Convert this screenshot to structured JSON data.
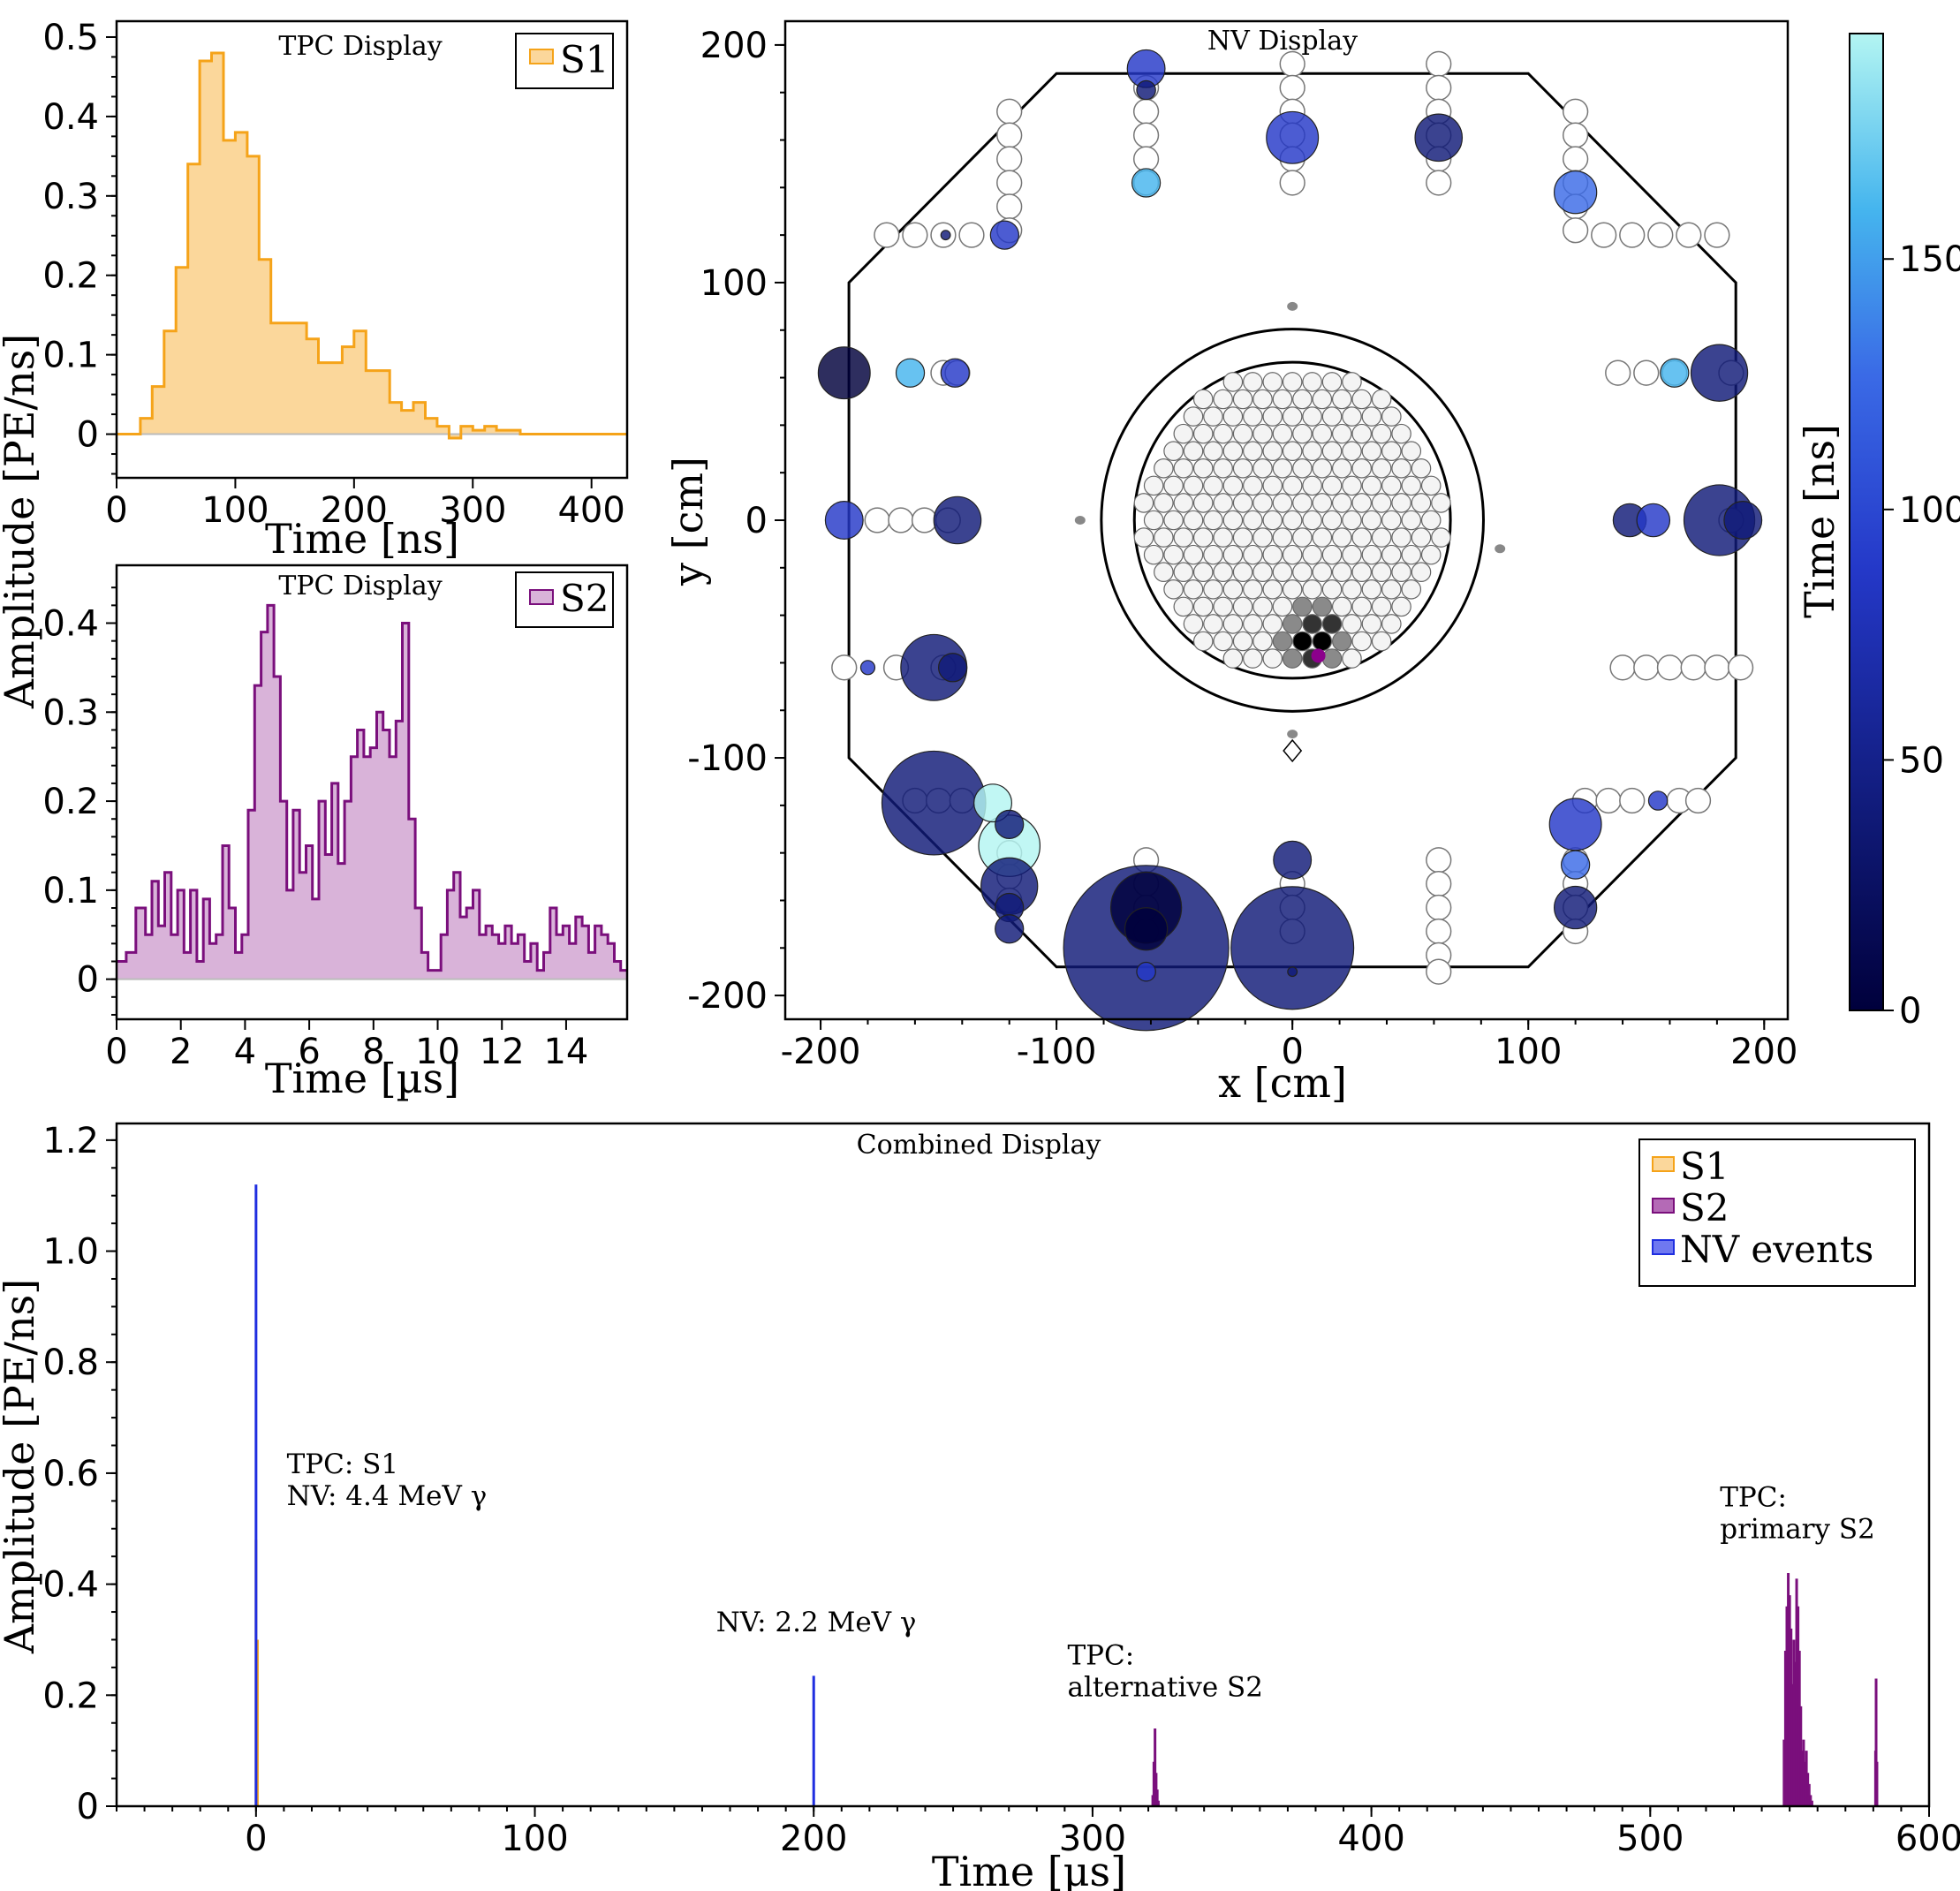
{
  "colors": {
    "s1": "#f5a319",
    "s1_fill": "#fbd79b",
    "s2": "#7a0f7c",
    "s2_fill": "#d9b3d9",
    "nv": "#1f2ee0",
    "cmap": [
      "#00003c",
      "#101a78",
      "#2438c8",
      "#3a6ae6",
      "#45b5ee",
      "#b3f5f2"
    ]
  },
  "shared_ylabel": "Amplitude [PE/ns]",
  "chart_data": [
    {
      "id": "s1",
      "type": "line",
      "title": "TPC Display",
      "xlabel": "Time [ns]",
      "ylabel": "Amplitude [PE/ns]",
      "xlim": [
        0,
        430
      ],
      "ylim": [
        -0.055,
        0.52
      ],
      "xticks": [
        0,
        100,
        200,
        300,
        400
      ],
      "yticks": [
        0,
        0.1,
        0.2,
        0.3,
        0.4,
        0.5
      ],
      "yticklabels": [
        "0",
        "0.1",
        "0.2",
        "0.3",
        "0.4",
        "0.5"
      ],
      "legend": [
        "S1"
      ],
      "series": [
        {
          "name": "S1",
          "x": [
            0,
            10,
            20,
            30,
            40,
            50,
            60,
            70,
            80,
            90,
            100,
            110,
            120,
            130,
            140,
            150,
            160,
            170,
            180,
            190,
            200,
            210,
            220,
            230,
            240,
            250,
            260,
            270,
            280,
            290,
            300,
            310,
            320,
            330,
            340,
            350,
            360,
            370,
            380,
            390,
            400,
            410,
            420,
            430
          ],
          "y": [
            0,
            0,
            0.02,
            0.06,
            0.13,
            0.21,
            0.34,
            0.47,
            0.48,
            0.37,
            0.38,
            0.35,
            0.22,
            0.14,
            0.14,
            0.14,
            0.12,
            0.09,
            0.09,
            0.11,
            0.13,
            0.08,
            0.08,
            0.04,
            0.03,
            0.04,
            0.02,
            0.01,
            -0.005,
            0.01,
            0.005,
            0.01,
            0.005,
            0.005,
            0,
            0,
            0,
            0,
            0,
            0,
            0,
            0,
            0,
            0
          ]
        }
      ]
    },
    {
      "id": "s2",
      "type": "line",
      "title": "TPC Display",
      "xlabel": "Time [µs]",
      "ylabel": "Amplitude [PE/ns]",
      "xlim": [
        0,
        15.9
      ],
      "ylim": [
        -0.045,
        0.465
      ],
      "xticks": [
        0,
        2,
        4,
        6,
        8,
        10,
        12,
        14
      ],
      "yticks": [
        0,
        0.1,
        0.2,
        0.3,
        0.4
      ],
      "yticklabels": [
        "0",
        "0.1",
        "0.2",
        "0.3",
        "0.4"
      ],
      "legend": [
        "S2"
      ],
      "series": [
        {
          "name": "S2",
          "x": [
            0,
            0.3,
            0.6,
            0.9,
            1.1,
            1.3,
            1.5,
            1.7,
            1.9,
            2.1,
            2.3,
            2.5,
            2.7,
            2.9,
            3.1,
            3.3,
            3.5,
            3.7,
            3.9,
            4.1,
            4.3,
            4.5,
            4.7,
            4.9,
            5.1,
            5.3,
            5.5,
            5.7,
            5.9,
            6.1,
            6.3,
            6.5,
            6.7,
            6.9,
            7.1,
            7.3,
            7.5,
            7.7,
            7.9,
            8.1,
            8.3,
            8.5,
            8.7,
            8.9,
            9.1,
            9.3,
            9.5,
            9.7,
            9.9,
            10.1,
            10.3,
            10.5,
            10.7,
            10.9,
            11.1,
            11.3,
            11.5,
            11.7,
            11.9,
            12.1,
            12.3,
            12.5,
            12.7,
            12.9,
            13.1,
            13.3,
            13.5,
            13.7,
            13.9,
            14.1,
            14.3,
            14.5,
            14.7,
            14.9,
            15.1,
            15.3,
            15.5,
            15.7,
            15.9
          ],
          "y": [
            0.02,
            0.03,
            0.08,
            0.05,
            0.11,
            0.06,
            0.12,
            0.05,
            0.1,
            0.03,
            0.1,
            0.02,
            0.09,
            0.04,
            0.05,
            0.15,
            0.08,
            0.03,
            0.05,
            0.19,
            0.33,
            0.39,
            0.42,
            0.34,
            0.2,
            0.1,
            0.19,
            0.12,
            0.15,
            0.09,
            0.2,
            0.14,
            0.22,
            0.13,
            0.2,
            0.25,
            0.28,
            0.25,
            0.26,
            0.3,
            0.28,
            0.25,
            0.29,
            0.4,
            0.18,
            0.08,
            0.03,
            0.01,
            0.01,
            0.05,
            0.1,
            0.12,
            0.07,
            0.08,
            0.1,
            0.05,
            0.06,
            0.05,
            0.04,
            0.06,
            0.04,
            0.05,
            0.02,
            0.04,
            0.01,
            0.03,
            0.08,
            0.05,
            0.06,
            0.04,
            0.07,
            0.06,
            0.03,
            0.06,
            0.05,
            0.04,
            0.02,
            0.01,
            0.01
          ]
        }
      ]
    },
    {
      "id": "nv",
      "type": "scatter",
      "title": "NV Display",
      "xlabel": "x [cm]",
      "ylabel": "y [cm]",
      "xlim": [
        -215,
        210
      ],
      "ylim": [
        -210,
        210
      ],
      "xticks": [
        -200,
        -100,
        0,
        100,
        200
      ],
      "yticks": [
        -200,
        -100,
        0,
        100,
        200
      ],
      "xticklabels": [
        "-200",
        "-100",
        "0",
        "100",
        "200"
      ],
      "yticklabels": [
        "-200",
        "-100",
        "0",
        "100",
        "200"
      ],
      "colorbar": {
        "label": "Time [ns]",
        "range": [
          0,
          195
        ],
        "ticks": [
          0,
          50,
          100,
          150
        ]
      },
      "outline": [
        [
          -100,
          188
        ],
        [
          100,
          188
        ],
        [
          188,
          100
        ],
        [
          188,
          -100
        ],
        [
          100,
          -188
        ],
        [
          -100,
          -188
        ],
        [
          -188,
          -100
        ],
        [
          -188,
          100
        ]
      ],
      "cryostat_radius": 81,
      "tpc_radius": 67,
      "pmt_idle": [
        [
          -120,
          172
        ],
        [
          -120,
          162
        ],
        [
          -120,
          152
        ],
        [
          -120,
          142
        ],
        [
          -120,
          132
        ],
        [
          -120,
          122
        ],
        [
          -172,
          120
        ],
        [
          -160,
          120
        ],
        [
          -148,
          120
        ],
        [
          -136,
          120
        ],
        [
          -62,
          182
        ],
        [
          -62,
          172
        ],
        [
          -62,
          162
        ],
        [
          -62,
          152
        ],
        [
          -62,
          142
        ],
        [
          0,
          192
        ],
        [
          0,
          182
        ],
        [
          0,
          172
        ],
        [
          0,
          162
        ],
        [
          0,
          152
        ],
        [
          0,
          142
        ],
        [
          62,
          192
        ],
        [
          62,
          182
        ],
        [
          62,
          172
        ],
        [
          62,
          162
        ],
        [
          62,
          152
        ],
        [
          62,
          142
        ],
        [
          120,
          172
        ],
        [
          120,
          162
        ],
        [
          120,
          152
        ],
        [
          120,
          142
        ],
        [
          120,
          132
        ],
        [
          120,
          122
        ],
        [
          132,
          120
        ],
        [
          144,
          120
        ],
        [
          156,
          120
        ],
        [
          168,
          120
        ],
        [
          180,
          120
        ],
        [
          -148,
          62
        ],
        [
          -142,
          62
        ],
        [
          138,
          62
        ],
        [
          150,
          62
        ],
        [
          162,
          62
        ],
        [
          186,
          62
        ],
        [
          -176,
          0
        ],
        [
          -166,
          0
        ],
        [
          -156,
          0
        ],
        [
          -146,
          0
        ],
        [
          186,
          0
        ],
        [
          -190,
          -62
        ],
        [
          -168,
          -62
        ],
        [
          -148,
          -62
        ],
        [
          140,
          -62
        ],
        [
          150,
          -62
        ],
        [
          160,
          -62
        ],
        [
          170,
          -62
        ],
        [
          180,
          -62
        ],
        [
          190,
          -62
        ],
        [
          -160,
          -118
        ],
        [
          -150,
          -118
        ],
        [
          -140,
          -118
        ],
        [
          124,
          -118
        ],
        [
          134,
          -118
        ],
        [
          144,
          -118
        ],
        [
          164,
          -118
        ],
        [
          172,
          -118
        ],
        [
          -62,
          -143
        ],
        [
          -62,
          -153
        ],
        [
          -62,
          -163
        ],
        [
          -62,
          -173
        ],
        [
          0,
          -153
        ],
        [
          0,
          -163
        ],
        [
          0,
          -173
        ],
        [
          62,
          -143
        ],
        [
          62,
          -153
        ],
        [
          62,
          -163
        ],
        [
          62,
          -173
        ],
        [
          62,
          -183
        ],
        [
          62,
          -190
        ],
        [
          120,
          -143
        ],
        [
          120,
          -153
        ],
        [
          120,
          -163
        ],
        [
          120,
          -173
        ],
        [
          -120,
          -140
        ],
        [
          -120,
          -150
        ],
        [
          -120,
          -160
        ]
      ],
      "hits": [
        {
          "x": -62,
          "y": 190,
          "r": 8,
          "t": 60
        },
        {
          "x": -62,
          "y": 181,
          "r": 4,
          "t": 20
        },
        {
          "x": 0,
          "y": 161,
          "r": 11,
          "t": 90
        },
        {
          "x": 62,
          "y": 161,
          "r": 10,
          "t": 25
        },
        {
          "x": -62,
          "y": 142,
          "r": 6,
          "t": 150
        },
        {
          "x": 120,
          "y": 138,
          "r": 9,
          "t": 130
        },
        {
          "x": -122,
          "y": 120,
          "r": 6,
          "t": 60
        },
        {
          "x": -147,
          "y": 120,
          "r": 2,
          "t": 40
        },
        {
          "x": -190,
          "y": 62,
          "r": 11,
          "t": 15
        },
        {
          "x": -162,
          "y": 62,
          "r": 6,
          "t": 170
        },
        {
          "x": -143,
          "y": 62,
          "r": 6,
          "t": 70
        },
        {
          "x": 162,
          "y": 62,
          "r": 6,
          "t": 160
        },
        {
          "x": 181,
          "y": 62,
          "r": 12,
          "t": 45
        },
        {
          "x": -190,
          "y": 0,
          "r": 8,
          "t": 70
        },
        {
          "x": -142,
          "y": 0,
          "r": 10,
          "t": 20
        },
        {
          "x": 143,
          "y": 0,
          "r": 7,
          "t": 30
        },
        {
          "x": 153,
          "y": 0,
          "r": 7,
          "t": 70
        },
        {
          "x": 181,
          "y": 0,
          "r": 15,
          "t": 35
        },
        {
          "x": 191,
          "y": 0,
          "r": 8,
          "t": 30
        },
        {
          "x": -152,
          "y": -62,
          "r": 14,
          "t": 40
        },
        {
          "x": -144,
          "y": -62,
          "r": 6,
          "t": 20
        },
        {
          "x": -180,
          "y": -62,
          "r": 3,
          "t": 60
        },
        {
          "x": -152,
          "y": -119,
          "r": 22,
          "t": 20
        },
        {
          "x": -127,
          "y": -119,
          "r": 8,
          "t": 195
        },
        {
          "x": -120,
          "y": -137,
          "r": 13,
          "t": 190
        },
        {
          "x": -120,
          "y": -128,
          "r": 6,
          "t": 30
        },
        {
          "x": -120,
          "y": -154,
          "r": 12,
          "t": 30
        },
        {
          "x": -120,
          "y": -163,
          "r": 6,
          "t": 25
        },
        {
          "x": -120,
          "y": -172,
          "r": 6,
          "t": 40
        },
        {
          "x": -62,
          "y": -163,
          "r": 15,
          "t": 15
        },
        {
          "x": -62,
          "y": -172,
          "r": 9,
          "t": 10
        },
        {
          "x": -62,
          "y": -180,
          "r": 35,
          "t": 20
        },
        {
          "x": -62,
          "y": -190,
          "r": 4,
          "t": 60
        },
        {
          "x": 0,
          "y": -143,
          "r": 8,
          "t": 55
        },
        {
          "x": 0,
          "y": -180,
          "r": 26,
          "t": 30
        },
        {
          "x": 0,
          "y": -190,
          "r": 2,
          "t": 40
        },
        {
          "x": 120,
          "y": -128,
          "r": 11,
          "t": 70
        },
        {
          "x": 120,
          "y": -145,
          "r": 6,
          "t": 100
        },
        {
          "x": 120,
          "y": -163,
          "r": 9,
          "t": 40
        },
        {
          "x": 155,
          "y": -118,
          "r": 4,
          "t": 90
        }
      ],
      "small_markers": [
        [
          0,
          90
        ],
        [
          -90,
          0
        ],
        [
          88,
          -12
        ],
        [
          0,
          -90
        ]
      ]
    },
    {
      "id": "combined",
      "type": "line",
      "title": "Combined Display",
      "xlabel": "Time [µs]",
      "ylabel": "Amplitude [PE/ns]",
      "xlim": [
        -50,
        600
      ],
      "ylim": [
        0,
        1.23
      ],
      "xticks": [
        0,
        100,
        200,
        300,
        400,
        500,
        600
      ],
      "yticks": [
        0,
        0.2,
        0.4,
        0.6,
        0.8,
        1.0,
        1.2
      ],
      "yticklabels": [
        "0",
        "0.2",
        "0.4",
        "0.6",
        "0.8",
        "1.0",
        "1.2"
      ],
      "legend": [
        "S1",
        "S2",
        "NV events"
      ],
      "series": [
        {
          "name": "S1",
          "x": [
            0,
            0.5
          ],
          "y": [
            0.48,
            0.3
          ]
        },
        {
          "name": "S2",
          "x": [
            321.6,
            322.0,
            322.4,
            322.8,
            323.2,
            323.6,
            548.0,
            548.5,
            549.0,
            549.5,
            550.0,
            550.5,
            551.0,
            551.5,
            552.0,
            552.5,
            553.0,
            553.5,
            554.0,
            554.5,
            555.0,
            555.5,
            556.0,
            556.5,
            557.0,
            557.5,
            558.0,
            580.8,
            581.0,
            581.3
          ],
          "y": [
            0.02,
            0.08,
            0.14,
            0.06,
            0.03,
            0.01,
            0.12,
            0.28,
            0.36,
            0.42,
            0.38,
            0.32,
            0.22,
            0.3,
            0.26,
            0.41,
            0.36,
            0.28,
            0.18,
            0.1,
            0.12,
            0.08,
            0.1,
            0.06,
            0.04,
            0.02,
            0.01,
            0.1,
            0.23,
            0.08
          ]
        },
        {
          "name": "NV events",
          "x": [
            0,
            200
          ],
          "y": [
            1.12,
            0.235
          ]
        }
      ],
      "annotations": [
        {
          "lines": [
            "TPC: S1",
            "NV: 4.4 MeV γ"
          ],
          "x": 11,
          "y": 0.6
        },
        {
          "lines": [
            "NV: 2.2 MeV γ"
          ],
          "x": 165,
          "y": 0.315
        },
        {
          "lines": [
            "TPC:",
            "alternative S2"
          ],
          "x": 291,
          "y": 0.255
        },
        {
          "lines": [
            "TPC:",
            "primary S2"
          ],
          "x": 525,
          "y": 0.54
        }
      ]
    }
  ]
}
